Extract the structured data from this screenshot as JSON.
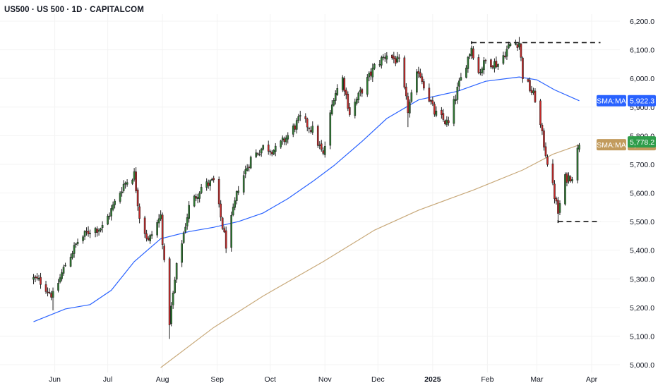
{
  "chart_data": {
    "type": "candlestick",
    "title": "US500 · US 500 · 1D · CAPITALCOM",
    "ylim": [
      4980,
      6230
    ],
    "y_ticks": [
      "5,000.0",
      "5,100.0",
      "5,200.0",
      "5,300.0",
      "5,400.0",
      "5,500.0",
      "5,600.0",
      "5,700.0",
      "5,800.0",
      "5,900.0",
      "6,000.0",
      "6,100.0",
      "6,200.0"
    ],
    "x_ticks": [
      {
        "label": "Jun",
        "date": "2024-06-01",
        "bold": false
      },
      {
        "label": "Jul",
        "date": "2024-07-01",
        "bold": false
      },
      {
        "label": "Aug",
        "date": "2024-08-01",
        "bold": false
      },
      {
        "label": "Sep",
        "date": "2024-09-01",
        "bold": false
      },
      {
        "label": "Oct",
        "date": "2024-10-01",
        "bold": false
      },
      {
        "label": "Nov",
        "date": "2024-11-01",
        "bold": false
      },
      {
        "label": "Dec",
        "date": "2024-12-01",
        "bold": false
      },
      {
        "label": "2025",
        "date": "2025-01-01",
        "bold": true
      },
      {
        "label": "Feb",
        "date": "2025-02-01",
        "bold": false
      },
      {
        "label": "Mar",
        "date": "2025-03-01",
        "bold": false
      },
      {
        "label": "Apr",
        "date": "2025-04-01",
        "bold": false
      }
    ],
    "up_color": "#2e7d32",
    "down_color": "#c62828",
    "anchors": [
      [
        "2024-05-20",
        5300
      ],
      [
        "2024-05-24",
        5290
      ],
      [
        "2024-05-31",
        5240
      ],
      [
        "2024-06-07",
        5350
      ],
      [
        "2024-06-14",
        5430
      ],
      [
        "2024-06-21",
        5470
      ],
      [
        "2024-06-28",
        5480
      ],
      [
        "2024-07-03",
        5540
      ],
      [
        "2024-07-10",
        5630
      ],
      [
        "2024-07-16",
        5665
      ],
      [
        "2024-07-19",
        5520
      ],
      [
        "2024-07-24",
        5430
      ],
      [
        "2024-07-31",
        5520
      ],
      [
        "2024-08-02",
        5350
      ],
      [
        "2024-08-05",
        5150
      ],
      [
        "2024-08-09",
        5340
      ],
      [
        "2024-08-16",
        5550
      ],
      [
        "2024-08-23",
        5620
      ],
      [
        "2024-08-30",
        5640
      ],
      [
        "2024-09-06",
        5420
      ],
      [
        "2024-09-13",
        5620
      ],
      [
        "2024-09-20",
        5720
      ],
      [
        "2024-09-27",
        5760
      ],
      [
        "2024-10-04",
        5750
      ],
      [
        "2024-10-11",
        5800
      ],
      [
        "2024-10-18",
        5860
      ],
      [
        "2024-10-25",
        5820
      ],
      [
        "2024-10-31",
        5730
      ],
      [
        "2024-11-06",
        5940
      ],
      [
        "2024-11-11",
        6000
      ],
      [
        "2024-11-15",
        5880
      ],
      [
        "2024-11-22",
        5960
      ],
      [
        "2024-11-29",
        6040
      ],
      [
        "2024-12-06",
        6085
      ],
      [
        "2024-12-13",
        6055
      ],
      [
        "2024-12-18",
        5890
      ],
      [
        "2024-12-24",
        6030
      ],
      [
        "2025-01-02",
        5880
      ],
      [
        "2025-01-10",
        5840
      ],
      [
        "2025-01-15",
        5960
      ],
      [
        "2025-01-23",
        6110
      ],
      [
        "2025-01-27",
        6020
      ],
      [
        "2025-01-31",
        6060
      ],
      [
        "2025-02-07",
        6050
      ],
      [
        "2025-02-14",
        6120
      ],
      [
        "2025-02-19",
        6125
      ],
      [
        "2025-02-21",
        6010
      ],
      [
        "2025-02-28",
        5930
      ],
      [
        "2025-03-04",
        5800
      ],
      [
        "2025-03-10",
        5620
      ],
      [
        "2025-03-13",
        5530
      ],
      [
        "2025-03-17",
        5650
      ],
      [
        "2025-03-21",
        5660
      ],
      [
        "2025-03-25",
        5778
      ]
    ],
    "sma_lines": [
      {
        "name": "SMA:MA",
        "value": "5,922.3",
        "color": "#2962ff",
        "bg": "#2962ff",
        "points": [
          [
            "2024-05-20",
            5150
          ],
          [
            "2024-06-07",
            5195
          ],
          [
            "2024-06-21",
            5210
          ],
          [
            "2024-07-03",
            5260
          ],
          [
            "2024-07-16",
            5360
          ],
          [
            "2024-07-31",
            5440
          ],
          [
            "2024-08-16",
            5465
          ],
          [
            "2024-08-30",
            5480
          ],
          [
            "2024-09-13",
            5500
          ],
          [
            "2024-09-27",
            5530
          ],
          [
            "2024-10-11",
            5580
          ],
          [
            "2024-10-25",
            5640
          ],
          [
            "2024-11-06",
            5695
          ],
          [
            "2024-11-22",
            5780
          ],
          [
            "2024-12-06",
            5860
          ],
          [
            "2024-12-24",
            5925
          ],
          [
            "2025-01-15",
            5955
          ],
          [
            "2025-01-31",
            5990
          ],
          [
            "2025-02-19",
            6005
          ],
          [
            "2025-03-01",
            5995
          ],
          [
            "2025-03-11",
            5960
          ],
          [
            "2025-03-25",
            5922
          ]
        ]
      },
      {
        "name": "SMA:MA",
        "value": "5,768.4",
        "color": "#c8a97a",
        "bg": "#c29b5d",
        "points": [
          [
            "2024-07-31",
            4990
          ],
          [
            "2024-08-30",
            5130
          ],
          [
            "2024-09-27",
            5240
          ],
          [
            "2024-10-31",
            5360
          ],
          [
            "2024-11-29",
            5470
          ],
          [
            "2024-12-24",
            5540
          ],
          [
            "2025-01-24",
            5610
          ],
          [
            "2025-02-21",
            5680
          ],
          [
            "2025-03-10",
            5735
          ],
          [
            "2025-03-25",
            5768
          ]
        ]
      }
    ],
    "price_label": {
      "value": "5,778.2",
      "bg": "#2e9d4a"
    },
    "levels": [
      {
        "name": "resistance",
        "y": 6125,
        "from": "2025-01-23",
        "to": "2025-04-06"
      },
      {
        "name": "support",
        "y": 5500,
        "from": "2025-03-13",
        "to": "2025-04-06"
      }
    ]
  }
}
